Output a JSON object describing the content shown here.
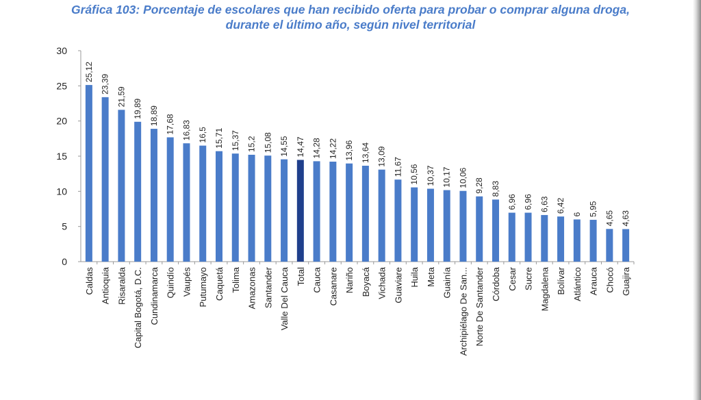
{
  "header": {
    "title_line1": "Gráfica 103: Porcentaje de escolares que han recibido oferta para probar o comprar alguna droga,",
    "title_line2": "durante el último año,  según nivel territorial"
  },
  "chart_data": {
    "type": "bar",
    "categories": [
      "Caldas",
      "Antioquia",
      "Risaralda",
      "Capital Bogotá, D.C.",
      "Cundinamarca",
      "Quindío",
      "Vaupés",
      "Putumayo",
      "Caquetá",
      "Tolima",
      "Amazonas",
      "Santander",
      "Valle Del Cauca",
      "Total",
      "Cauca",
      "Casanare",
      "Nariño",
      "Boyacá",
      "Vichada",
      "Guaviare",
      "Huila",
      "Meta",
      "Guainía",
      "Archipiélago De San...",
      "Norte De Santander",
      "Córdoba",
      "Cesar",
      "Sucre",
      "Magdalena",
      "Bolívar",
      "Atlántico",
      "Arauca",
      "Chocó",
      "Guajira"
    ],
    "values": [
      25.12,
      23.39,
      21.59,
      19.89,
      18.89,
      17.68,
      16.83,
      16.5,
      15.71,
      15.37,
      15.2,
      15.08,
      14.55,
      14.47,
      14.28,
      14.22,
      13.96,
      13.64,
      13.09,
      11.67,
      10.56,
      10.37,
      10.17,
      10.06,
      9.28,
      8.83,
      6.96,
      6.96,
      6.63,
      6.42,
      6,
      5.95,
      4.65,
      4.63
    ],
    "value_labels": [
      "25,12",
      "23,39",
      "21,59",
      "19,89",
      "18,89",
      "17,68",
      "16,83",
      "16,5",
      "15,71",
      "15,37",
      "15,2",
      "15,08",
      "14,55",
      "14,47",
      "14,28",
      "14,22",
      "13,96",
      "13,64",
      "13,09",
      "11,67",
      "10,56",
      "10,37",
      "10,17",
      "10,06",
      "9,28",
      "8,83",
      "6,96",
      "6,96",
      "6,63",
      "6,42",
      "6",
      "5,95",
      "4,65",
      "4,63"
    ],
    "ylim": [
      0,
      30
    ],
    "yticks": [
      "0",
      "5",
      "10",
      "15",
      "20",
      "25",
      "30"
    ],
    "grid": false,
    "highlight_category": "Total",
    "colors": {
      "bar": "#4a7cc9",
      "highlight": "#1f3f8c",
      "title": "#4a7cc9"
    }
  }
}
